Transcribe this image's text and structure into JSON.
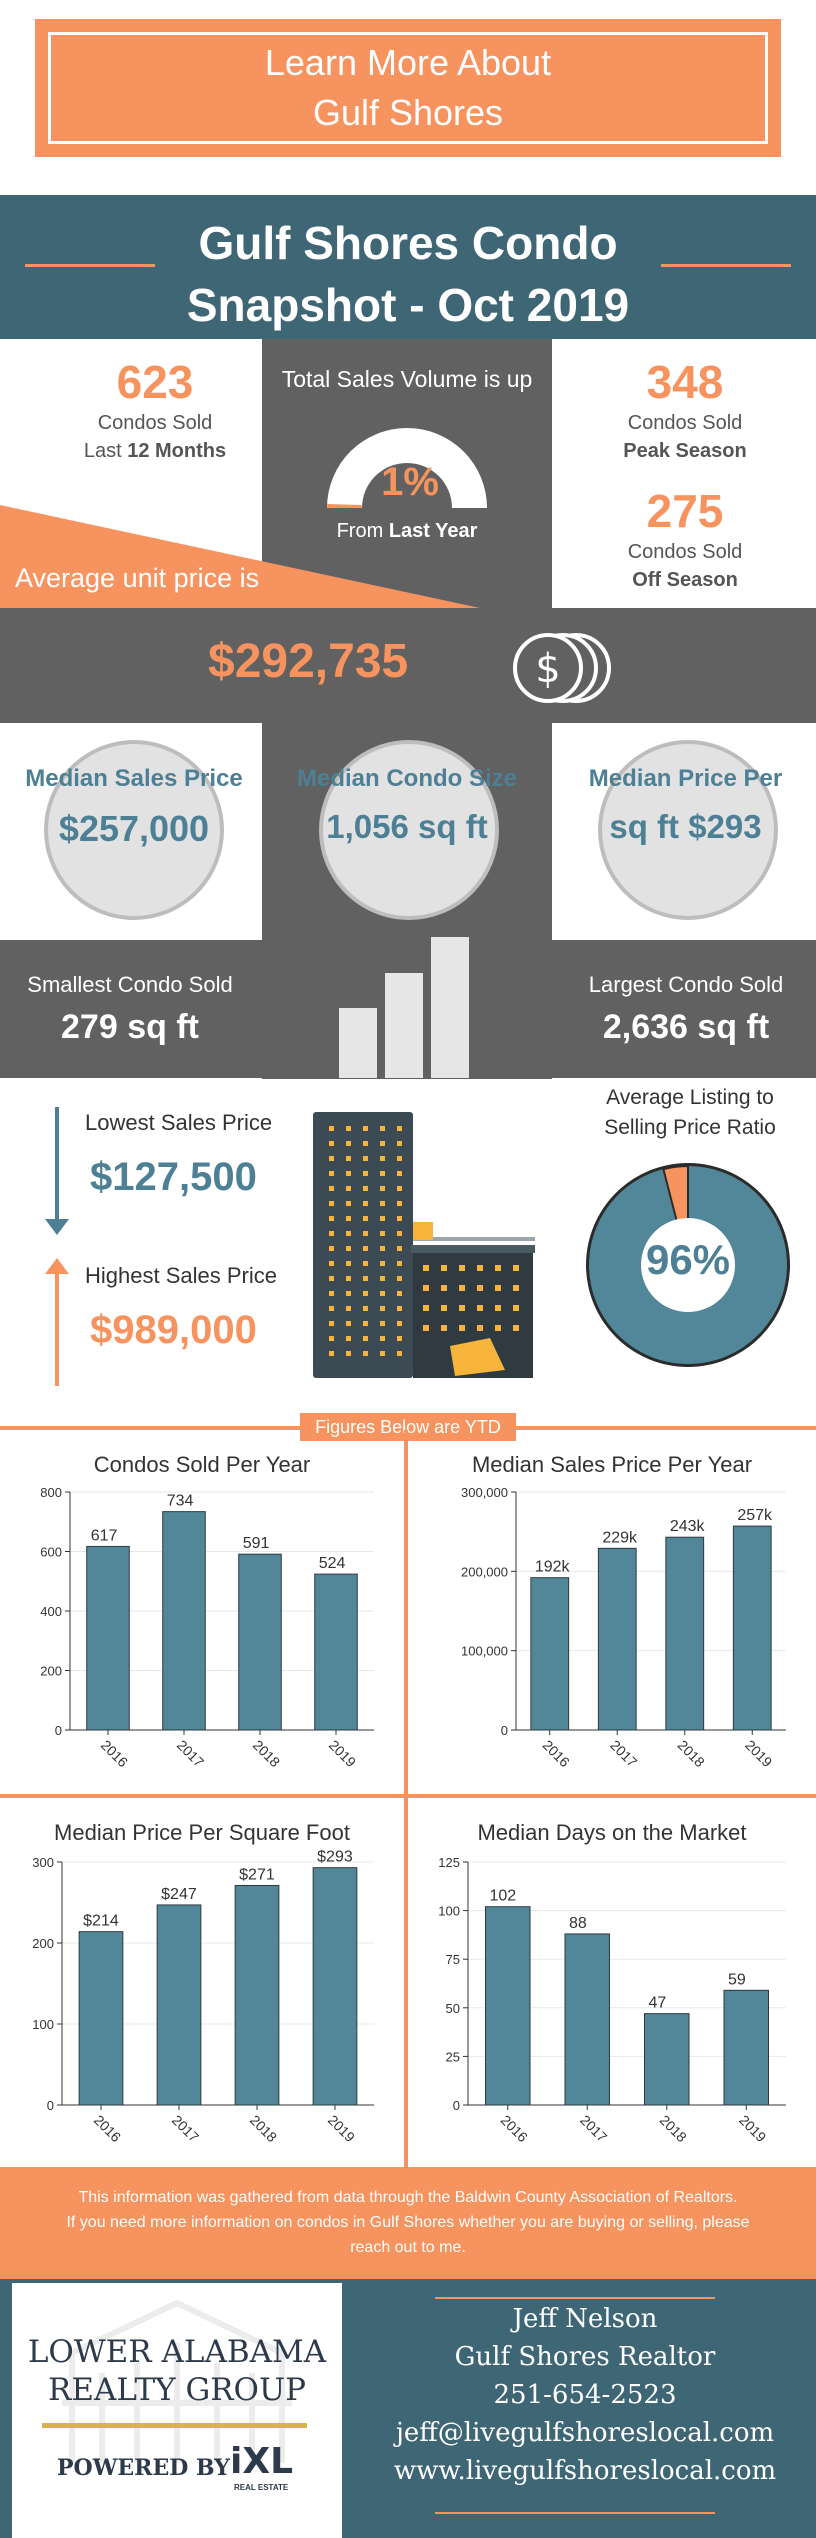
{
  "banner": {
    "line1": "Learn More About",
    "line2": "Gulf Shores"
  },
  "title": {
    "line1": "Gulf Shores Condo",
    "line2": "Snapshot - Oct 2019"
  },
  "stats": {
    "sold_count": "623",
    "sold_label": "Condos Sold",
    "sold_period_prefix": "Last ",
    "sold_period_bold": "12 Months",
    "volume_heading": "Total Sales Volume is up",
    "volume_pct": "1%",
    "volume_pct_value": 0.01,
    "volume_from_prefix": "From ",
    "volume_from_bold": "Last Year",
    "peak_count": "348",
    "peak_label": "Condos Sold",
    "peak_season": "Peak Season",
    "off_count": "275",
    "off_label": "Condos Sold",
    "off_season": "Off Season",
    "avg_label": "Average unit price is",
    "avg_price": "$292,735",
    "dollar_icon": "dollar-coins-icon"
  },
  "medians": [
    {
      "title": "Median Sales Price",
      "value": "$257,000"
    },
    {
      "title": "Median Condo Size",
      "value": "1,056 sq ft"
    },
    {
      "title": "Median Price Per",
      "value": "sq ft $293"
    }
  ],
  "sizes": {
    "smallest_label": "Smallest Condo Sold",
    "smallest_value": "279 sq ft",
    "largest_label": "Largest Condo Sold",
    "largest_value": "2,636 sq ft"
  },
  "prices": {
    "lowest_label": "Lowest Sales Price",
    "lowest_value": "$127,500",
    "highest_label": "Highest Sales Price",
    "highest_value": "$989,000",
    "ratio_line1": "Average Listing to",
    "ratio_line2": "Selling Price Ratio",
    "ratio_value": "96%",
    "ratio_fraction": 0.96
  },
  "ytd_label": "Figures Below are YTD",
  "colors": {
    "orange": "#f6935e",
    "teal": "#3f6674",
    "bar": "#52879a",
    "gray": "#616161"
  },
  "chart_data": [
    {
      "type": "bar",
      "title": "Condos Sold Per Year",
      "categories": [
        "2016",
        "2017",
        "2018",
        "2019"
      ],
      "values": [
        617,
        734,
        591,
        524
      ],
      "labels": [
        "617",
        "734",
        "591",
        "524"
      ],
      "yticks": [
        "0",
        "200",
        "400",
        "600",
        "800"
      ],
      "ylim": [
        0,
        800
      ]
    },
    {
      "type": "bar",
      "title": "Median Sales Price Per Year",
      "categories": [
        "2016",
        "2017",
        "2018",
        "2019"
      ],
      "values": [
        192000,
        229000,
        243000,
        257000
      ],
      "labels": [
        "192k",
        "229k",
        "243k",
        "257k"
      ],
      "yticks": [
        "0",
        "100,000",
        "200,000",
        "300,000"
      ],
      "ylim": [
        0,
        300000
      ]
    },
    {
      "type": "bar",
      "title": "Median Price Per Square Foot",
      "categories": [
        "2016",
        "2017",
        "2018",
        "2019"
      ],
      "values": [
        214,
        247,
        271,
        293
      ],
      "labels": [
        "$214",
        "$247",
        "$271",
        "$293"
      ],
      "yticks": [
        "0",
        "100",
        "200",
        "300"
      ],
      "ylim": [
        0,
        300
      ]
    },
    {
      "type": "bar",
      "title": "Median Days on the Market",
      "categories": [
        "2016",
        "2017",
        "2018",
        "2019"
      ],
      "values": [
        102,
        88,
        47,
        59
      ],
      "labels": [
        "102",
        "88",
        "47",
        "59"
      ],
      "yticks": [
        "0",
        "25",
        "50",
        "75",
        "100",
        "125"
      ],
      "ylim": [
        0,
        125
      ]
    }
  ],
  "footer": {
    "note_line1": "This information was gathered from data through the Baldwin County Association of Realtors.",
    "note_line2": "If you need more information on condos in Gulf Shores whether you are buying or selling, please",
    "note_line3": "reach out to me.",
    "logo_line1": "LOWER ALABAMA",
    "logo_line2": "REALTY GROUP",
    "powered": "POWERED BY",
    "ixl": "iXL",
    "ixl_sub": "REAL ESTATE",
    "name": "Jeff Nelson",
    "role": "Gulf Shores Realtor",
    "phone": "251-654-2523",
    "email": "jeff@livegulfshoreslocal.com",
    "website": "www.livegulfshoreslocal.com"
  }
}
